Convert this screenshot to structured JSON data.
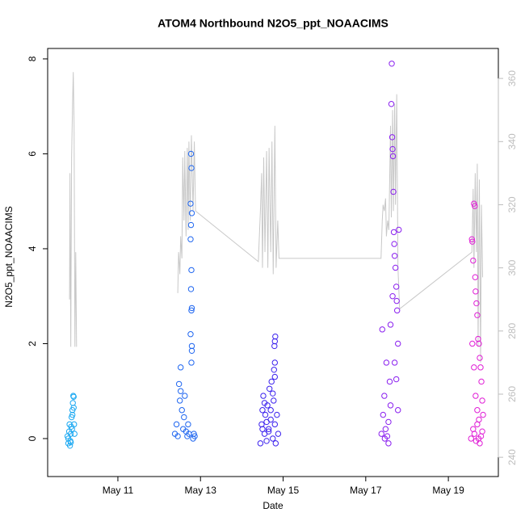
{
  "chart_data": {
    "type": "scatter",
    "title": "ATOM4 Northbound N2O5_ppt_NOAACIMS",
    "xlabel": "Date",
    "ylabel": "N2O5_ppt_NOAACIMS",
    "xlim": [
      9.3,
      20.21
    ],
    "ylim": [
      -0.8,
      8.22
    ],
    "y2lim": [
      233.9,
      369.5
    ],
    "xticks": [
      {
        "value": 11,
        "label": "May 11"
      },
      {
        "value": 13,
        "label": "May 13"
      },
      {
        "value": 15,
        "label": "May 15"
      },
      {
        "value": 17,
        "label": "May 17"
      },
      {
        "value": 19,
        "label": "May 19"
      }
    ],
    "yticks": [
      0,
      2,
      4,
      6,
      8
    ],
    "y2ticks": [
      240,
      260,
      280,
      300,
      320,
      340,
      360
    ],
    "y2color": "#bdbdbd",
    "series": [
      {
        "color": "#1aa8f2",
        "x": [
          9.78,
          9.8,
          9.82,
          9.83,
          9.85,
          9.86,
          9.87,
          9.88,
          9.9,
          9.91,
          9.92,
          9.93,
          9.94,
          9.95,
          9.8,
          9.84,
          9.89,
          9.9,
          9.93,
          9.86
        ],
        "values": [
          0.05,
          -0.1,
          0.15,
          0.3,
          -0.05,
          0.1,
          0.25,
          0.45,
          0.6,
          0.75,
          0.9,
          0.88,
          0.3,
          0.1,
          0.0,
          -0.15,
          0.2,
          0.5,
          0.65,
          -0.08
        ]
      },
      {
        "color": "#1f66f0",
        "x": [
          12.38,
          12.42,
          12.45,
          12.48,
          12.5,
          12.52,
          12.55,
          12.58,
          12.6,
          12.62,
          12.65,
          12.68,
          12.7,
          12.72,
          12.77,
          12.78,
          12.76,
          12.79,
          12.77,
          12.76,
          12.78,
          12.77,
          12.79,
          12.78,
          12.76,
          12.79,
          12.79,
          12.78,
          12.82,
          12.84,
          12.86,
          12.52
        ],
        "values": [
          0.1,
          0.3,
          0.05,
          1.15,
          0.8,
          1.0,
          0.6,
          0.2,
          0.45,
          0.9,
          0.15,
          0.05,
          0.3,
          0.1,
          6.0,
          5.7,
          4.95,
          4.75,
          4.5,
          4.2,
          3.55,
          3.15,
          2.75,
          2.7,
          2.2,
          1.95,
          1.85,
          1.6,
          0.0,
          0.1,
          0.05,
          1.5
        ]
      },
      {
        "color": "#3c22ee",
        "x": [
          14.45,
          14.48,
          14.5,
          14.52,
          14.55,
          14.57,
          14.6,
          14.62,
          14.65,
          14.67,
          14.7,
          14.72,
          14.75,
          14.77,
          14.8,
          14.82,
          14.85,
          14.88,
          14.5,
          14.55,
          14.6,
          14.65,
          14.7,
          14.75,
          14.8,
          14.78,
          14.8,
          14.79,
          14.8,
          14.81
        ],
        "values": [
          -0.1,
          0.3,
          0.6,
          0.9,
          0.1,
          0.5,
          -0.05,
          0.7,
          0.2,
          1.05,
          0.4,
          1.2,
          0.0,
          0.8,
          0.3,
          -0.1,
          0.5,
          0.1,
          0.2,
          0.75,
          0.35,
          0.15,
          0.6,
          0.95,
          1.3,
          1.45,
          1.6,
          1.95,
          2.05,
          2.15
        ]
      },
      {
        "color": "#8a1fef",
        "x": [
          17.38,
          17.4,
          17.42,
          17.45,
          17.48,
          17.5,
          17.52,
          17.55,
          17.58,
          17.6,
          17.62,
          17.63,
          17.64,
          17.65,
          17.66,
          17.67,
          17.68,
          17.69,
          17.7,
          17.72,
          17.74,
          17.75,
          17.76,
          17.78,
          17.8,
          17.46,
          17.55,
          17.6,
          17.65,
          17.7,
          17.74,
          17.78
        ],
        "values": [
          0.1,
          2.3,
          0.5,
          0.9,
          0.2,
          1.6,
          0.05,
          0.35,
          1.2,
          0.7,
          7.05,
          7.9,
          6.35,
          6.1,
          5.95,
          5.2,
          4.35,
          4.1,
          3.85,
          3.6,
          3.2,
          2.9,
          2.7,
          2.0,
          4.4,
          0.0,
          -0.1,
          2.4,
          3.0,
          1.6,
          1.25,
          0.6
        ]
      },
      {
        "color": "#e01ed6",
        "x": [
          19.55,
          19.57,
          19.58,
          19.6,
          19.62,
          19.64,
          19.65,
          19.66,
          19.68,
          19.7,
          19.72,
          19.74,
          19.76,
          19.78,
          19.8,
          19.82,
          19.84,
          19.6,
          19.63,
          19.67,
          19.7,
          19.73,
          19.76,
          19.79,
          19.82,
          19.58,
          19.62,
          19.66,
          19.7,
          19.74
        ],
        "values": [
          0.0,
          4.2,
          4.15,
          3.75,
          4.95,
          4.9,
          3.4,
          3.1,
          2.85,
          2.6,
          2.1,
          2.0,
          1.7,
          1.5,
          1.2,
          0.8,
          0.5,
          0.2,
          0.1,
          -0.05,
          0.3,
          0.0,
          -0.1,
          0.05,
          0.15,
          2.0,
          1.5,
          0.9,
          0.6,
          0.4
        ]
      },
      {
        "type": "line",
        "axis": "y2",
        "color": "#c8c8c8",
        "x": [
          9.83,
          9.84,
          9.86,
          9.88,
          9.9,
          9.92,
          9.94,
          9.96,
          9.98,
          10.0,
          11,
          12.45,
          12.47,
          12.5,
          12.52,
          12.55,
          12.57,
          12.6,
          12.62,
          12.65,
          12.68,
          12.7,
          12.72,
          12.75,
          12.78,
          12.82,
          12.85,
          12.88,
          14.4,
          14.45,
          14.48,
          14.5,
          14.53,
          14.56,
          14.6,
          14.63,
          14.66,
          14.7,
          14.73,
          14.76,
          14.8,
          14.83,
          14.87,
          14.9,
          17.37,
          17.4,
          17.42,
          17.45,
          17.48,
          17.5,
          17.53,
          17.56,
          17.6,
          17.62,
          17.65,
          17.67,
          17.7,
          17.72,
          17.75,
          17.78,
          17.82,
          19.57,
          19.6,
          19.62,
          19.65,
          19.68,
          19.7,
          19.72,
          19.75,
          19.78,
          19.8,
          19.83
        ],
        "values": [
          290,
          330,
          275,
          335,
          350,
          362,
          345,
          275,
          305,
          275,
          null,
          292,
          305,
          298,
          310,
          303,
          335,
          315,
          337,
          310,
          338,
          312,
          340,
          315,
          342,
          318,
          340,
          318,
          302,
          318,
          330,
          300,
          335,
          305,
          337,
          300,
          338,
          305,
          340,
          298,
          345,
          300,
          315,
          303,
          303,
          315,
          320,
          318,
          322,
          310,
          315,
          312,
          345,
          316,
          350,
          318,
          352,
          320,
          355,
          300,
          287,
          305,
          325,
          300,
          330,
          305,
          333,
          275,
          328,
          270,
          320,
          297
        ]
      }
    ]
  }
}
